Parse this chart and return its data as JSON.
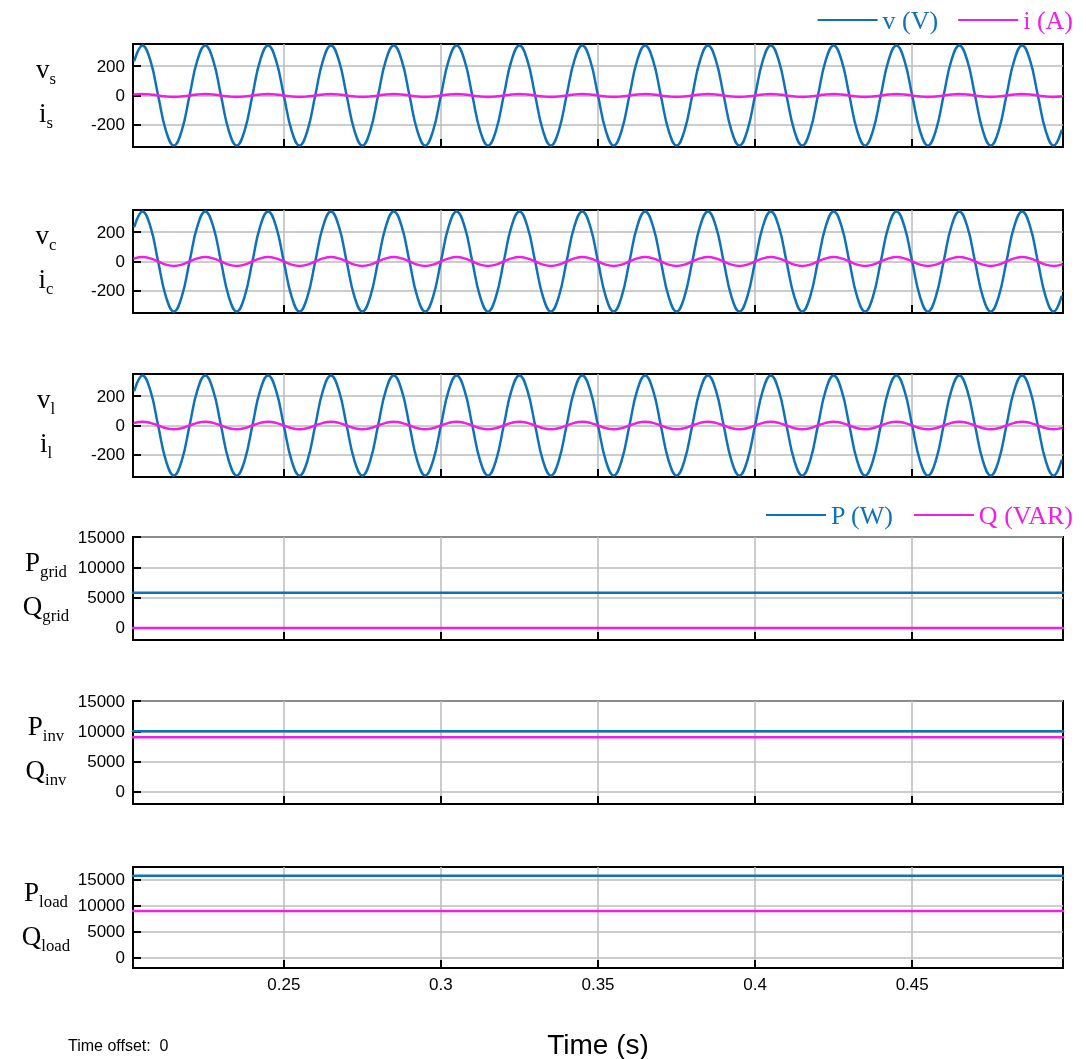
{
  "chart_data": [
    {
      "type": "line",
      "ylabel": "v$_{s}$\ni$_{s}$",
      "legend": "top right",
      "grid": true,
      "tick_labels": "y",
      "xlim": [
        0.202,
        0.498
      ],
      "xticks": [
        0.25,
        0.3,
        0.35,
        0.4,
        0.45
      ],
      "ylim": [
        -350,
        350
      ],
      "yticks": [
        -200,
        0,
        200
      ],
      "x": [
        0.2025,
        0.205,
        0.2075,
        0.21,
        0.2125,
        0.215,
        0.2175,
        0.22,
        0.2225,
        0.225,
        0.2275,
        0.23,
        0.2325,
        0.235,
        0.2375,
        0.24,
        0.2425,
        0.245,
        0.2475,
        0.25,
        0.2525,
        0.255,
        0.2575,
        0.26,
        0.2625,
        0.265,
        0.2675,
        0.27,
        0.2725,
        0.275,
        0.2775,
        0.28,
        0.2825,
        0.285,
        0.2875,
        0.29,
        0.2925,
        0.295,
        0.2975,
        0.3,
        0.3025,
        0.305,
        0.3075,
        0.31,
        0.3125,
        0.315,
        0.3175,
        0.32,
        0.3225,
        0.325,
        0.3275,
        0.33,
        0.3325,
        0.335,
        0.3375,
        0.34,
        0.3425,
        0.345,
        0.3475,
        0.35,
        0.3525,
        0.355,
        0.3575,
        0.36,
        0.3625,
        0.365,
        0.3675,
        0.37,
        0.3725,
        0.375,
        0.3775,
        0.38,
        0.3825,
        0.385,
        0.3875,
        0.39,
        0.3925,
        0.395,
        0.3975,
        0.4,
        0.4025,
        0.405,
        0.4075,
        0.41,
        0.4125,
        0.415,
        0.4175,
        0.42,
        0.4225,
        0.425,
        0.4275,
        0.43,
        0.4325,
        0.435,
        0.4375,
        0.44,
        0.4425,
        0.445,
        0.4475,
        0.45,
        0.4525,
        0.455,
        0.4575,
        0.46,
        0.4625,
        0.465,
        0.4675,
        0.47,
        0.4725,
        0.475,
        0.4775,
        0.48,
        0.4825,
        0.485,
        0.4875,
        0.49,
        0.4925,
        0.495,
        0.4975
      ],
      "series": [
        {
          "name": "v (V)",
          "color": "#0f72b8",
          "values": [
            240,
            340,
            240,
            0,
            -240,
            -340,
            -240,
            0,
            240,
            340,
            240,
            0,
            -240,
            -340,
            -240,
            0,
            240,
            340,
            240,
            0,
            -240,
            -340,
            -240,
            0,
            240,
            340,
            240,
            0,
            -240,
            -340,
            -240,
            0,
            240,
            340,
            240,
            0,
            -240,
            -340,
            -240,
            0,
            240,
            340,
            240,
            0,
            -240,
            -340,
            -240,
            0,
            240,
            340,
            240,
            0,
            -240,
            -340,
            -240,
            0,
            240,
            340,
            240,
            0,
            -240,
            -340,
            -240,
            0,
            240,
            340,
            240,
            0,
            -240,
            -340,
            -240,
            0,
            240,
            340,
            240,
            0,
            -240,
            -340,
            -240,
            0,
            240,
            340,
            240,
            0,
            -240,
            -340,
            -240,
            0,
            240,
            340,
            240,
            0,
            -240,
            -340,
            -240,
            0,
            240,
            340,
            240,
            0,
            -240,
            -340,
            -240,
            0,
            240,
            340,
            240,
            0,
            -240,
            -340,
            -240,
            0,
            240,
            340,
            240,
            0,
            -240,
            -340,
            -240
          ]
        },
        {
          "name": "i (A)",
          "color": "#f01ee6",
          "values": [
            7,
            10,
            7,
            0,
            -7,
            -10,
            -7,
            0,
            7,
            10,
            7,
            0,
            -7,
            -10,
            -7,
            0,
            7,
            10,
            7,
            0,
            -7,
            -10,
            -7,
            0,
            7,
            10,
            7,
            0,
            -7,
            -10,
            -7,
            0,
            7,
            10,
            7,
            0,
            -7,
            -10,
            -7,
            0,
            7,
            10,
            7,
            0,
            -7,
            -10,
            -7,
            0,
            7,
            10,
            7,
            0,
            -7,
            -10,
            -7,
            0,
            7,
            10,
            7,
            0,
            -7,
            -10,
            -7,
            0,
            7,
            10,
            7,
            0,
            -7,
            -10,
            -7,
            0,
            7,
            10,
            7,
            0,
            -7,
            -10,
            -7,
            0,
            7,
            10,
            7,
            0,
            -7,
            -10,
            -7,
            0,
            7,
            10,
            7,
            0,
            -7,
            -10,
            -7,
            0,
            7,
            10,
            7,
            0,
            -7,
            -10,
            -7,
            0,
            7,
            10,
            7,
            0,
            -7,
            -10,
            -7,
            0,
            7,
            10,
            7,
            0,
            -7,
            -10,
            -7
          ]
        }
      ]
    },
    {
      "type": "line",
      "ylabel": "v$_{c}$\ni$_{c}$",
      "grid": true,
      "tick_labels": "y",
      "xlim": [
        0.202,
        0.498
      ],
      "xticks": [
        0.25,
        0.3,
        0.35,
        0.4,
        0.45
      ],
      "ylim": [
        -350,
        350
      ],
      "yticks": [
        -200,
        0,
        200
      ],
      "x": [
        0.2025,
        0.205,
        0.2075,
        0.21,
        0.2125,
        0.215,
        0.2175,
        0.22,
        0.2225,
        0.225,
        0.2275,
        0.23,
        0.2325,
        0.235,
        0.2375,
        0.24,
        0.2425,
        0.245,
        0.2475,
        0.25,
        0.2525,
        0.255,
        0.2575,
        0.26,
        0.2625,
        0.265,
        0.2675,
        0.27,
        0.2725,
        0.275,
        0.2775,
        0.28,
        0.2825,
        0.285,
        0.2875,
        0.29,
        0.2925,
        0.295,
        0.2975,
        0.3,
        0.3025,
        0.305,
        0.3075,
        0.31,
        0.3125,
        0.315,
        0.3175,
        0.32,
        0.3225,
        0.325,
        0.3275,
        0.33,
        0.3325,
        0.335,
        0.3375,
        0.34,
        0.3425,
        0.345,
        0.3475,
        0.35,
        0.3525,
        0.355,
        0.3575,
        0.36,
        0.3625,
        0.365,
        0.3675,
        0.37,
        0.3725,
        0.375,
        0.3775,
        0.38,
        0.3825,
        0.385,
        0.3875,
        0.39,
        0.3925,
        0.395,
        0.3975,
        0.4,
        0.4025,
        0.405,
        0.4075,
        0.41,
        0.4125,
        0.415,
        0.4175,
        0.42,
        0.4225,
        0.425,
        0.4275,
        0.43,
        0.4325,
        0.435,
        0.4375,
        0.44,
        0.4425,
        0.445,
        0.4475,
        0.45,
        0.4525,
        0.455,
        0.4575,
        0.46,
        0.4625,
        0.465,
        0.4675,
        0.47,
        0.4725,
        0.475,
        0.4775,
        0.48,
        0.4825,
        0.485,
        0.4875,
        0.49,
        0.4925,
        0.495,
        0.4975
      ],
      "series": [
        {
          "color": "#0f72b8",
          "values": [
            240,
            340,
            240,
            0,
            -240,
            -340,
            -240,
            0,
            240,
            340,
            240,
            0,
            -240,
            -340,
            -240,
            0,
            240,
            340,
            240,
            0,
            -240,
            -340,
            -240,
            0,
            240,
            340,
            240,
            0,
            -240,
            -340,
            -240,
            0,
            240,
            340,
            240,
            0,
            -240,
            -340,
            -240,
            0,
            240,
            340,
            240,
            0,
            -240,
            -340,
            -240,
            0,
            240,
            340,
            240,
            0,
            -240,
            -340,
            -240,
            0,
            240,
            340,
            240,
            0,
            -240,
            -340,
            -240,
            0,
            240,
            340,
            240,
            0,
            -240,
            -340,
            -240,
            0,
            240,
            340,
            240,
            0,
            -240,
            -340,
            -240,
            0,
            240,
            340,
            240,
            0,
            -240,
            -340,
            -240,
            0,
            240,
            340,
            240,
            0,
            -240,
            -340,
            -240,
            0,
            240,
            340,
            240,
            0,
            -240,
            -340,
            -240,
            0,
            240,
            340,
            240,
            0,
            -240,
            -340,
            -240,
            0,
            240,
            340,
            240,
            0,
            -240,
            -340,
            -240
          ]
        },
        {
          "color": "#f01ee6",
          "values": [
            21,
            30,
            21,
            0,
            -21,
            -30,
            -21,
            0,
            21,
            30,
            21,
            0,
            -21,
            -30,
            -21,
            0,
            21,
            30,
            21,
            0,
            -21,
            -30,
            -21,
            0,
            21,
            30,
            21,
            0,
            -21,
            -30,
            -21,
            0,
            21,
            30,
            21,
            0,
            -21,
            -30,
            -21,
            0,
            21,
            30,
            21,
            0,
            -21,
            -30,
            -21,
            0,
            21,
            30,
            21,
            0,
            -21,
            -30,
            -21,
            0,
            21,
            30,
            21,
            0,
            -21,
            -30,
            -21,
            0,
            21,
            30,
            21,
            0,
            -21,
            -30,
            -21,
            0,
            21,
            30,
            21,
            0,
            -21,
            -30,
            -21,
            0,
            21,
            30,
            21,
            0,
            -21,
            -30,
            -21,
            0,
            21,
            30,
            21,
            0,
            -21,
            -30,
            -21,
            0,
            21,
            30,
            21,
            0,
            -21,
            -30,
            -21,
            0,
            21,
            30,
            21,
            0,
            -21,
            -30,
            -21,
            0,
            21,
            30,
            21,
            0,
            -21,
            -30,
            -21
          ]
        }
      ]
    },
    {
      "type": "line",
      "ylabel": "v$_{l}$\ni$_{l}$",
      "grid": true,
      "tick_labels": "y",
      "xlim": [
        0.202,
        0.498
      ],
      "xticks": [
        0.25,
        0.3,
        0.35,
        0.4,
        0.45
      ],
      "ylim": [
        -350,
        350
      ],
      "yticks": [
        -200,
        0,
        200
      ],
      "x": [
        0.2025,
        0.205,
        0.2075,
        0.21,
        0.2125,
        0.215,
        0.2175,
        0.22,
        0.2225,
        0.225,
        0.2275,
        0.23,
        0.2325,
        0.235,
        0.2375,
        0.24,
        0.2425,
        0.245,
        0.2475,
        0.25,
        0.2525,
        0.255,
        0.2575,
        0.26,
        0.2625,
        0.265,
        0.2675,
        0.27,
        0.2725,
        0.275,
        0.2775,
        0.28,
        0.2825,
        0.285,
        0.2875,
        0.29,
        0.2925,
        0.295,
        0.2975,
        0.3,
        0.3025,
        0.305,
        0.3075,
        0.31,
        0.3125,
        0.315,
        0.3175,
        0.32,
        0.3225,
        0.325,
        0.3275,
        0.33,
        0.3325,
        0.335,
        0.3375,
        0.34,
        0.3425,
        0.345,
        0.3475,
        0.35,
        0.3525,
        0.355,
        0.3575,
        0.36,
        0.3625,
        0.365,
        0.3675,
        0.37,
        0.3725,
        0.375,
        0.3775,
        0.38,
        0.3825,
        0.385,
        0.3875,
        0.39,
        0.3925,
        0.395,
        0.3975,
        0.4,
        0.4025,
        0.405,
        0.4075,
        0.41,
        0.4125,
        0.415,
        0.4175,
        0.42,
        0.4225,
        0.425,
        0.4275,
        0.43,
        0.4325,
        0.435,
        0.4375,
        0.44,
        0.4425,
        0.445,
        0.4475,
        0.45,
        0.4525,
        0.455,
        0.4575,
        0.46,
        0.4625,
        0.465,
        0.4675,
        0.47,
        0.4725,
        0.475,
        0.4775,
        0.48,
        0.4825,
        0.485,
        0.4875,
        0.49,
        0.4925,
        0.495,
        0.4975
      ],
      "series": [
        {
          "color": "#0f72b8",
          "values": [
            240,
            340,
            240,
            0,
            -240,
            -340,
            -240,
            0,
            240,
            340,
            240,
            0,
            -240,
            -340,
            -240,
            0,
            240,
            340,
            240,
            0,
            -240,
            -340,
            -240,
            0,
            240,
            340,
            240,
            0,
            -240,
            -340,
            -240,
            0,
            240,
            340,
            240,
            0,
            -240,
            -340,
            -240,
            0,
            240,
            340,
            240,
            0,
            -240,
            -340,
            -240,
            0,
            240,
            340,
            240,
            0,
            -240,
            -340,
            -240,
            0,
            240,
            340,
            240,
            0,
            -240,
            -340,
            -240,
            0,
            240,
            340,
            240,
            0,
            -240,
            -340,
            -240,
            0,
            240,
            340,
            240,
            0,
            -240,
            -340,
            -240,
            0,
            240,
            340,
            240,
            0,
            -240,
            -340,
            -240,
            0,
            240,
            340,
            240,
            0,
            -240,
            -340,
            -240,
            0,
            240,
            340,
            240,
            0,
            -240,
            -340,
            -240,
            0,
            240,
            340,
            240,
            0,
            -240,
            -340,
            -240,
            0,
            240,
            340,
            240,
            0,
            -240,
            -340,
            -240
          ]
        },
        {
          "color": "#f01ee6",
          "values": [
            18,
            25,
            18,
            0,
            -18,
            -25,
            -18,
            0,
            18,
            25,
            18,
            0,
            -18,
            -25,
            -18,
            0,
            18,
            25,
            18,
            0,
            -18,
            -25,
            -18,
            0,
            18,
            25,
            18,
            0,
            -18,
            -25,
            -18,
            0,
            18,
            25,
            18,
            0,
            -18,
            -25,
            -18,
            0,
            18,
            25,
            18,
            0,
            -18,
            -25,
            -18,
            0,
            18,
            25,
            18,
            0,
            -18,
            -25,
            -18,
            0,
            18,
            25,
            18,
            0,
            -18,
            -25,
            -18,
            0,
            18,
            25,
            18,
            0,
            -18,
            -25,
            -18,
            0,
            18,
            25,
            18,
            0,
            -18,
            -25,
            -18,
            0,
            18,
            25,
            18,
            0,
            -18,
            -25,
            -18,
            0,
            18,
            25,
            18,
            0,
            -18,
            -25,
            -18,
            0,
            18,
            25,
            18,
            0,
            -18,
            -25,
            -18,
            0,
            18,
            25,
            18,
            0,
            -18,
            -25,
            -18,
            0,
            18,
            25,
            18,
            0,
            -18,
            -25,
            -18
          ]
        }
      ]
    },
    {
      "type": "line",
      "ylabel": "P$_{grid}$\nQ$_{grid}$",
      "legend": "top right",
      "grid": true,
      "tick_labels": "y",
      "xlim": [
        0.202,
        0.498
      ],
      "xticks": [
        0.25,
        0.3,
        0.35,
        0.4,
        0.45
      ],
      "ylim": [
        -2000,
        15000
      ],
      "yticks": [
        0,
        5000,
        10000,
        15000
      ],
      "x": [
        0.202,
        0.498
      ],
      "series": [
        {
          "name": "P (W)",
          "color": "#0f72b8",
          "values": [
            5800,
            5800
          ]
        },
        {
          "name": "Q (VAR)",
          "color": "#f01ee6",
          "values": [
            0,
            0
          ]
        }
      ]
    },
    {
      "type": "line",
      "ylabel": "P$_{inv}$\nQ$_{inv}$",
      "grid": true,
      "tick_labels": "y",
      "xlim": [
        0.202,
        0.498
      ],
      "xticks": [
        0.25,
        0.3,
        0.35,
        0.4,
        0.45
      ],
      "ylim": [
        -2000,
        15000
      ],
      "yticks": [
        0,
        5000,
        10000,
        15000
      ],
      "x": [
        0.202,
        0.498
      ],
      "series": [
        {
          "color": "#0f72b8",
          "values": [
            10000,
            10000
          ]
        },
        {
          "color": "#f01ee6",
          "values": [
            9000,
            9000
          ]
        }
      ]
    },
    {
      "type": "line",
      "ylabel": "P$_{load}$\nQ$_{load}$",
      "xlabel": "Time (s)",
      "annotations": [
        "Time offset:  0"
      ],
      "grid": true,
      "xlim": [
        0.202,
        0.498
      ],
      "xticks": [
        0.25,
        0.3,
        0.35,
        0.4,
        0.45
      ],
      "ylim": [
        -2000,
        17500
      ],
      "yticks": [
        0,
        5000,
        10000,
        15000
      ],
      "x": [
        0.202,
        0.498
      ],
      "series": [
        {
          "color": "#0f72b8",
          "values": [
            15800,
            15800
          ]
        },
        {
          "color": "#f01ee6",
          "values": [
            9000,
            9000
          ]
        }
      ]
    }
  ]
}
